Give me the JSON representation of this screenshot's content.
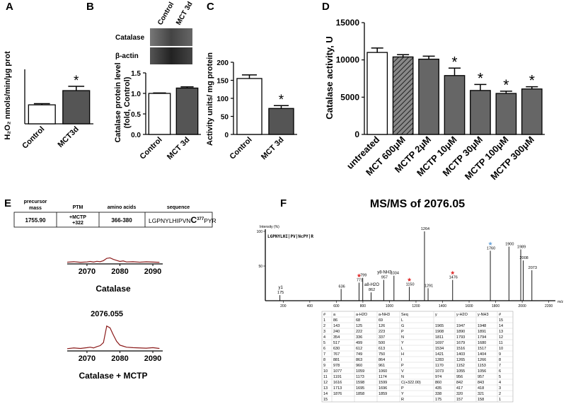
{
  "panel_labels": [
    "A",
    "B",
    "C",
    "D",
    "E",
    "F"
  ],
  "chart_data": [
    {
      "type": "bar",
      "categories": [
        "Control",
        "MCT3d"
      ],
      "values": [
        80,
        140
      ],
      "errors": [
        5,
        18
      ],
      "colors": [
        "#ffffff",
        "#555555"
      ],
      "ylabel": "H₂O₂ nmols/min/μg prot",
      "ylim": [
        0,
        170
      ],
      "significance": [
        null,
        "*"
      ]
    },
    {
      "type": "bar",
      "categories": [
        "Control",
        "MCT 3d"
      ],
      "values": [
        1.0,
        1.13
      ],
      "errors": [
        0.01,
        0.03
      ],
      "colors": [
        "#ffffff",
        "#555555"
      ],
      "ylabel": [
        "Catalase protein level",
        "(fold, Control)"
      ],
      "ylim": [
        0,
        1.5
      ],
      "yticks": [
        {
          "value": 0,
          "label": "0.0"
        },
        {
          "value": 0.5,
          "label": "0.5"
        },
        {
          "value": 1,
          "label": "1.0"
        },
        {
          "value": 1.5,
          "label": "1.5"
        }
      ],
      "blot": {
        "columns": [
          "Control",
          "MCT 3d"
        ],
        "rows": [
          "Catalase",
          "β-actin"
        ]
      }
    },
    {
      "type": "bar",
      "categories": [
        "Control",
        "MCT 3d"
      ],
      "values": [
        155,
        72
      ],
      "errors": [
        10,
        8
      ],
      "colors": [
        "#ffffff",
        "#555555"
      ],
      "ylabel": "Activity units/ mg protein",
      "ylim": [
        0,
        200
      ],
      "yticks": [
        0,
        50,
        100,
        150,
        200
      ],
      "significance": [
        null,
        "*"
      ]
    },
    {
      "type": "bar",
      "categories": [
        "untreated",
        "MCT 600μM",
        "MCTP 2μM",
        "MCTP 10μM",
        "MCTP  30μM",
        "MCTP 100μM",
        "MCTP 300μM"
      ],
      "values": [
        11000,
        10400,
        10100,
        7900,
        5900,
        5500,
        6100
      ],
      "errors": [
        600,
        300,
        400,
        1000,
        800,
        300,
        300
      ],
      "colors": [
        "#ffffff",
        "#777777",
        "#666666",
        "#666666",
        "#666666",
        "#666666",
        "#666666"
      ],
      "hatched": [
        false,
        true,
        false,
        false,
        false,
        false,
        false
      ],
      "ylabel": "Catalase activity, U",
      "ylim": [
        0,
        15000
      ],
      "yticks": [
        0,
        5000,
        10000,
        15000
      ],
      "significance": [
        null,
        null,
        null,
        "*",
        "*",
        "*",
        "*"
      ]
    },
    {
      "type": "spectrum",
      "caption": "Catalase",
      "color": "#8b1a1a",
      "xlim": [
        2064,
        2093
      ],
      "xticks": [
        2070,
        2080,
        2090
      ],
      "ylim": [
        0,
        100
      ],
      "x": [
        2064,
        2066,
        2068,
        2070,
        2071,
        2072,
        2073,
        2074,
        2075,
        2076,
        2077,
        2078,
        2079,
        2080,
        2081,
        2082,
        2084,
        2086,
        2088,
        2090,
        2092
      ],
      "values": [
        8,
        12,
        7,
        10,
        14,
        9,
        15,
        12,
        20,
        38,
        42,
        30,
        22,
        14,
        18,
        10,
        12,
        8,
        11,
        9,
        7
      ]
    },
    {
      "type": "spectrum",
      "caption": "Catalase + MCTP",
      "peak_label": 2076.055,
      "color": "#8b1a1a",
      "xlim": [
        2064,
        2093
      ],
      "xticks": [
        2070,
        2080,
        2090
      ],
      "ylim": [
        0,
        100
      ],
      "x": [
        2064,
        2066,
        2068,
        2070,
        2071,
        2072,
        2073,
        2074,
        2075,
        2076,
        2077,
        2078,
        2079,
        2080,
        2081,
        2082,
        2084,
        2086,
        2088,
        2090,
        2092
      ],
      "values": [
        6,
        9,
        7,
        10,
        12,
        9,
        14,
        18,
        30,
        95,
        88,
        60,
        35,
        20,
        16,
        12,
        10,
        9,
        8,
        10,
        7
      ]
    },
    {
      "type": "stick",
      "title": "MS/MS of 2076.05",
      "ylabel": "Intensity (%)",
      "xlabel": "m/z",
      "sequence_label": "LGPNYLHI|PV|NcPY|R",
      "xlim": [
        65,
        2250
      ],
      "xticks": [
        200,
        400,
        600,
        800,
        1000,
        1200,
        1400,
        1600,
        1800,
        2000,
        2200
      ],
      "ylim": [
        0,
        100
      ],
      "yticks": [
        50,
        100
      ],
      "x": [
        175,
        636,
        771,
        799,
        862,
        957,
        1034,
        1150,
        1264,
        1291,
        1476,
        1760,
        1900,
        1989,
        2008,
        2073
      ],
      "values": [
        8,
        17,
        26,
        33,
        12,
        30,
        36,
        20,
        100,
        18,
        30,
        72,
        78,
        74,
        58,
        44
      ],
      "ion_labels": [
        "y1",
        null,
        null,
        null,
        "a8-H2O",
        "y8-NH3",
        null,
        null,
        null,
        null,
        null,
        null,
        null,
        null,
        null,
        null
      ],
      "stars": [
        null,
        null,
        "#e03030",
        null,
        null,
        null,
        null,
        "#e03030",
        null,
        null,
        "#e03030",
        "#6fa8dc",
        null,
        null,
        null,
        null
      ]
    }
  ],
  "peptide_table": {
    "headers": [
      [
        "precursor",
        "mass"
      ],
      [
        "PTM"
      ],
      [
        "amino acids"
      ],
      [
        "sequence"
      ]
    ],
    "row": {
      "mass": "1755.90",
      "ptm": [
        "+MCTP",
        "+322"
      ],
      "amino_acids": "366-380",
      "sequence": {
        "prefix": "LGPNYLHIPVN",
        "residue": "C",
        "position": "377",
        "suffix": "PYR"
      }
    }
  },
  "fragment_table": {
    "headers": [
      "#",
      "a",
      "a-H2O",
      "a-NH3",
      "Seq",
      "y",
      "y-H2O",
      "y-NH3",
      "#"
    ],
    "rows": [
      [
        "1",
        "86",
        "68",
        "69",
        "L",
        null,
        null,
        null,
        "15"
      ],
      [
        "2",
        "143",
        "125",
        "126",
        "G",
        "1965",
        "1947",
        "1948",
        "14"
      ],
      [
        "3",
        "240",
        "222",
        "223",
        "P",
        "1908",
        "1890",
        "1891",
        "13"
      ],
      [
        "4",
        "354",
        "336",
        "337",
        "N",
        "1811",
        "1793",
        "1794",
        "12"
      ],
      [
        "5",
        "517",
        "499",
        "500",
        "Y",
        "1697",
        "1679",
        "1680",
        "11"
      ],
      [
        "6",
        "630",
        "612",
        "613",
        "L",
        "1534",
        "1516",
        "1517",
        "10"
      ],
      [
        "7",
        "767",
        "749",
        "750",
        "H",
        "1421",
        "1403",
        "1404",
        "9"
      ],
      [
        "8",
        "881",
        "863",
        "864",
        "I",
        "1283",
        "1265",
        "1266",
        "8"
      ],
      [
        "9",
        "978",
        "960",
        "961",
        "P",
        "1170",
        "1152",
        "1153",
        "7"
      ],
      [
        "10",
        "1077",
        "1059",
        "1060",
        "V",
        "1073",
        "1055",
        "1056",
        "6"
      ],
      [
        "11",
        "1191",
        "1173",
        "1174",
        "N",
        "974",
        "956",
        "957",
        "5"
      ],
      [
        "12",
        "1616",
        "1598",
        "1599",
        "C(+322.00)",
        "860",
        "842",
        "843",
        "4"
      ],
      [
        "13",
        "1713",
        "1695",
        "1696",
        "P",
        "435",
        "417",
        "418",
        "3"
      ],
      [
        "14",
        "1876",
        "1858",
        "1859",
        "Y",
        "338",
        "320",
        "321",
        "2"
      ],
      [
        "15",
        null,
        null,
        null,
        "R",
        "175",
        "157",
        "158",
        "1"
      ]
    ]
  }
}
